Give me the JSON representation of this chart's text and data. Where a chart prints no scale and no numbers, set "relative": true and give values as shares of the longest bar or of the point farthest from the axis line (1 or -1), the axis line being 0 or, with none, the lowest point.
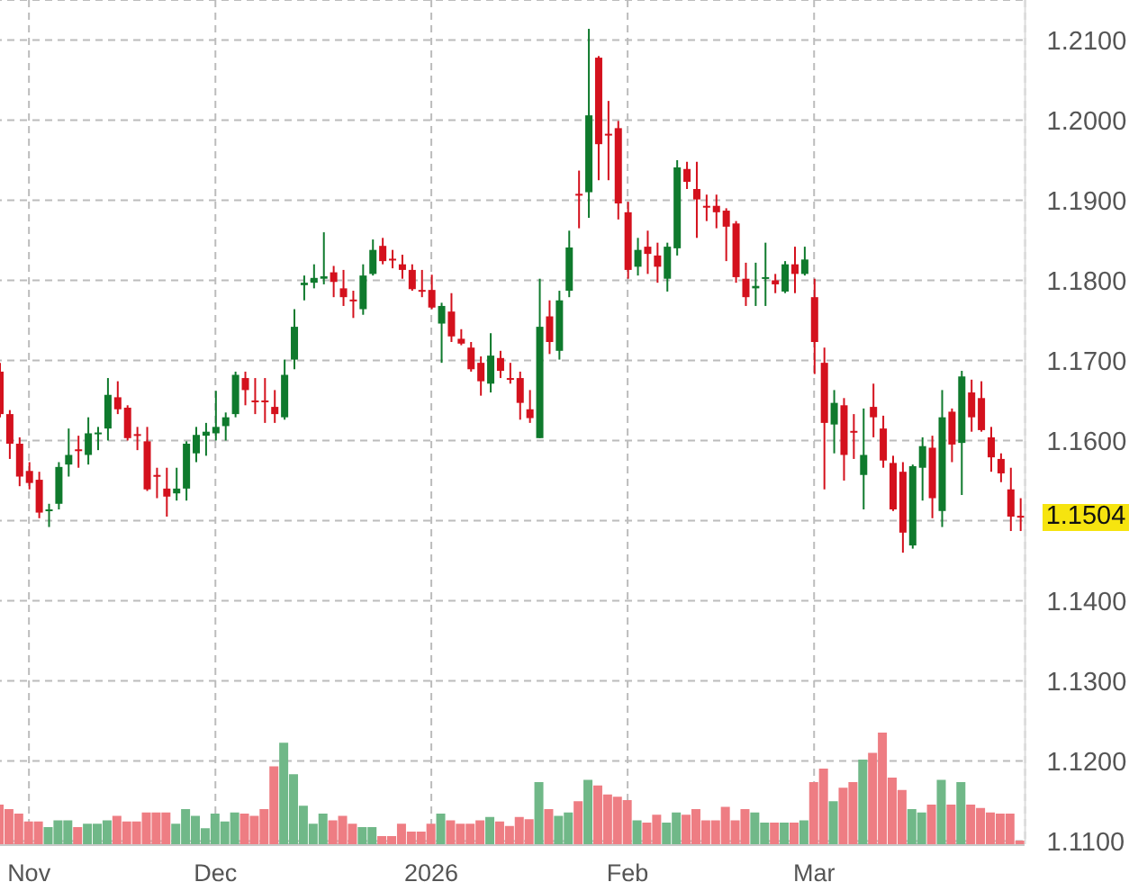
{
  "chart_data": [
    {
      "type": "candlestick",
      "categories": [
        null,
        null,
        null,
        "Nov",
        null,
        null,
        null,
        null,
        null,
        null,
        null,
        null,
        null,
        null,
        null,
        null,
        null,
        null,
        null,
        null,
        null,
        null,
        "Dec",
        null,
        null,
        null,
        null,
        null,
        null,
        null,
        null,
        null,
        null,
        null,
        null,
        null,
        null,
        null,
        null,
        null,
        null,
        null,
        null,
        null,
        "2026",
        null,
        null,
        null,
        null,
        null,
        null,
        null,
        null,
        null,
        null,
        null,
        null,
        null,
        null,
        null,
        null,
        null,
        null,
        null,
        "Feb",
        null,
        null,
        null,
        null,
        null,
        null,
        null,
        null,
        null,
        null,
        null,
        null,
        null,
        null,
        null,
        null,
        null,
        null,
        "Mar",
        null,
        null,
        null,
        null,
        null,
        null,
        null,
        null,
        null,
        null,
        null,
        null,
        null,
        null,
        null,
        null,
        null,
        null,
        null,
        null,
        null
      ],
      "ohlc": [
        [
          1.1686,
          1.1697,
          1.1629,
          1.1633
        ],
        [
          1.1633,
          1.1638,
          1.1577,
          1.1596
        ],
        [
          1.1596,
          1.1604,
          1.1543,
          1.1555
        ],
        [
          1.1562,
          1.1573,
          1.1539,
          1.1547
        ],
        [
          1.1551,
          1.1561,
          1.1503,
          1.151
        ],
        [
          1.1512,
          1.1521,
          1.1492,
          1.1514
        ],
        [
          1.1521,
          1.1573,
          1.1514,
          1.1567
        ],
        [
          1.157,
          1.1615,
          1.1555,
          1.1582
        ],
        [
          1.1589,
          1.1606,
          1.1566,
          1.1587
        ],
        [
          1.1582,
          1.1629,
          1.157,
          1.1609
        ],
        [
          1.1608,
          1.1617,
          1.1588,
          1.161
        ],
        [
          1.1615,
          1.1678,
          1.16,
          1.1657
        ],
        [
          1.1654,
          1.1674,
          1.1633,
          1.1639
        ],
        [
          1.1641,
          1.1644,
          1.16,
          1.1603
        ],
        [
          1.1608,
          1.1617,
          1.1588,
          1.1606
        ],
        [
          1.1599,
          1.1617,
          1.1537,
          1.1539
        ],
        [
          1.1557,
          1.1566,
          1.1528,
          1.1555
        ],
        [
          1.154,
          1.1566,
          1.1505,
          1.153
        ],
        [
          1.1534,
          1.1566,
          1.1525,
          1.154
        ],
        [
          1.154,
          1.1599,
          1.1525,
          1.1596
        ],
        [
          1.1584,
          1.1617,
          1.1573,
          1.1607
        ],
        [
          1.1606,
          1.1622,
          1.1581,
          1.1611
        ],
        [
          1.1609,
          1.1662,
          1.16,
          1.1617
        ],
        [
          1.1618,
          1.1635,
          1.16,
          1.1629
        ],
        [
          1.1633,
          1.1686,
          1.1629,
          1.1682
        ],
        [
          1.1678,
          1.1686,
          1.1644,
          1.1663
        ],
        [
          1.165,
          1.1678,
          1.1633,
          1.1649
        ],
        [
          1.165,
          1.1678,
          1.1622,
          1.1648
        ],
        [
          1.1642,
          1.1663,
          1.1622,
          1.1633
        ],
        [
          1.1629,
          1.1701,
          1.1626,
          1.1682
        ],
        [
          1.1701,
          1.1764,
          1.1689,
          1.1742
        ],
        [
          1.1794,
          1.1806,
          1.1775,
          1.1797
        ],
        [
          1.1797,
          1.182,
          1.179,
          1.1803
        ],
        [
          1.1802,
          1.186,
          1.1795,
          1.1805
        ],
        [
          1.181,
          1.1818,
          1.1779,
          1.1798
        ],
        [
          1.179,
          1.1813,
          1.1768,
          1.1779
        ],
        [
          1.1776,
          1.1787,
          1.1753,
          1.1775
        ],
        [
          1.1764,
          1.182,
          1.1757,
          1.1806
        ],
        [
          1.1808,
          1.1851,
          1.1806,
          1.1838
        ],
        [
          1.1843,
          1.1853,
          1.182,
          1.1824
        ],
        [
          1.1827,
          1.1838,
          1.1815,
          1.1826
        ],
        [
          1.182,
          1.1832,
          1.1802,
          1.1813
        ],
        [
          1.1813,
          1.182,
          1.1787,
          1.1789
        ],
        [
          1.1788,
          1.1813,
          1.1779,
          1.1787
        ],
        [
          1.1788,
          1.1807,
          1.1764,
          1.1766
        ],
        [
          1.1746,
          1.1772,
          1.1697,
          1.1768
        ],
        [
          1.1761,
          1.1784,
          1.1723,
          1.173
        ],
        [
          1.1727,
          1.1739,
          1.1719,
          1.1721
        ],
        [
          1.1716,
          1.1723,
          1.1686,
          1.1689
        ],
        [
          1.1697,
          1.1705,
          1.1656,
          1.1674
        ],
        [
          1.1671,
          1.1734,
          1.166,
          1.1706
        ],
        [
          1.1703,
          1.1712,
          1.1678,
          1.1687
        ],
        [
          1.1678,
          1.1697,
          1.1671,
          1.1677
        ],
        [
          1.1678,
          1.1686,
          1.1626,
          1.1647
        ],
        [
          1.1639,
          1.1663,
          1.1622,
          1.1628
        ],
        [
          1.1603,
          1.1802,
          1.1603,
          1.1742
        ],
        [
          1.1755,
          1.1775,
          1.1708,
          1.1723
        ],
        [
          1.1712,
          1.1787,
          1.1701,
          1.1775
        ],
        [
          1.1787,
          1.1862,
          1.1779,
          1.1841
        ],
        [
          1.1908,
          1.1937,
          1.1865,
          1.1906
        ],
        [
          1.191,
          1.2114,
          1.1878,
          1.2006
        ],
        [
          1.2078,
          1.208,
          1.1925,
          1.197
        ],
        [
          1.1983,
          1.2024,
          1.1925,
          1.1981
        ],
        [
          1.199,
          1.1999,
          1.1876,
          1.1896
        ],
        [
          1.1885,
          1.1898,
          1.1802,
          1.1813
        ],
        [
          1.1817,
          1.1853,
          1.1806,
          1.1838
        ],
        [
          1.1842,
          1.1862,
          1.1808,
          1.1833
        ],
        [
          1.1831,
          1.1847,
          1.1797,
          1.1817
        ],
        [
          1.1802,
          1.1847,
          1.1786,
          1.1842
        ],
        [
          1.184,
          1.195,
          1.1831,
          1.1941
        ],
        [
          1.1939,
          1.1948,
          1.1914,
          1.1923
        ],
        [
          1.1914,
          1.1948,
          1.1853,
          1.1901
        ],
        [
          1.1893,
          1.1907,
          1.1874,
          1.1891
        ],
        [
          1.1893,
          1.1907,
          1.1865,
          1.1885
        ],
        [
          1.1887,
          1.189,
          1.1824,
          1.1867
        ],
        [
          1.1871,
          1.1874,
          1.1797,
          1.1804
        ],
        [
          1.1802,
          1.1822,
          1.1768,
          1.1779
        ],
        [
          1.179,
          1.1822,
          1.1768,
          1.1793
        ],
        [
          1.1802,
          1.1847,
          1.1768,
          1.1804
        ],
        [
          1.18,
          1.1808,
          1.1784,
          1.1795
        ],
        [
          1.1786,
          1.1824,
          1.1784,
          1.182
        ],
        [
          1.182,
          1.1842,
          1.1784,
          1.1808
        ],
        [
          1.1808,
          1.1842,
          1.1806,
          1.1826
        ],
        [
          1.1779,
          1.1802,
          1.1683,
          1.1723
        ],
        [
          1.1697,
          1.1716,
          1.1539,
          1.1622
        ],
        [
          1.162,
          1.1663,
          1.1584,
          1.1647
        ],
        [
          1.1644,
          1.1653,
          1.155,
          1.1582
        ],
        [
          1.1612,
          1.1633,
          1.1577,
          1.161
        ],
        [
          1.1557,
          1.164,
          1.1514,
          1.1582
        ],
        [
          1.1642,
          1.1671,
          1.1604,
          1.1629
        ],
        [
          1.1615,
          1.1631,
          1.1566,
          1.1575
        ],
        [
          1.1572,
          1.1581,
          1.1512,
          1.1514
        ],
        [
          1.1561,
          1.1573,
          1.146,
          1.1485
        ],
        [
          1.1469,
          1.157,
          1.1465,
          1.1568
        ],
        [
          1.1566,
          1.1604,
          1.1525,
          1.1593
        ],
        [
          1.1591,
          1.1606,
          1.1503,
          1.1528
        ],
        [
          1.1512,
          1.1663,
          1.1492,
          1.1629
        ],
        [
          1.1636,
          1.164,
          1.1573,
          1.1595
        ],
        [
          1.1597,
          1.1687,
          1.1532,
          1.168
        ],
        [
          1.166,
          1.1676,
          1.1611,
          1.1629
        ],
        [
          1.1653,
          1.1674,
          1.1611,
          1.1613
        ],
        [
          1.1604,
          1.1617,
          1.1561,
          1.1579
        ],
        [
          1.1577,
          1.1584,
          1.1548,
          1.1559
        ],
        [
          1.1539,
          1.1566,
          1.1487,
          1.1505
        ],
        [
          1.1506,
          1.1528,
          1.1487,
          1.1504
        ]
      ],
      "colors": [
        "#d4111d",
        "#d4111d",
        "#d4111d",
        "#d4111d",
        "#d4111d",
        "#0f7a2d",
        "#0f7a2d",
        "#0f7a2d",
        "#d4111d",
        "#0f7a2d",
        "#0f7a2d",
        "#0f7a2d",
        "#d4111d",
        "#d4111d",
        "#d4111d",
        "#d4111d",
        "#d4111d",
        "#d4111d",
        "#0f7a2d",
        "#0f7a2d",
        "#0f7a2d",
        "#0f7a2d",
        "#0f7a2d",
        "#0f7a2d",
        "#0f7a2d",
        "#d4111d",
        "#d4111d",
        "#d4111d",
        "#d4111d",
        "#0f7a2d",
        "#0f7a2d",
        "#0f7a2d",
        "#0f7a2d",
        "#0f7a2d",
        "#d4111d",
        "#d4111d",
        "#d4111d",
        "#0f7a2d",
        "#0f7a2d",
        "#d4111d",
        "#d4111d",
        "#d4111d",
        "#d4111d",
        "#d4111d",
        "#d4111d",
        "#0f7a2d",
        "#d4111d",
        "#d4111d",
        "#d4111d",
        "#d4111d",
        "#0f7a2d",
        "#d4111d",
        "#d4111d",
        "#d4111d",
        "#d4111d",
        "#0f7a2d",
        "#d4111d",
        "#0f7a2d",
        "#0f7a2d",
        "#d4111d",
        "#0f7a2d",
        "#d4111d",
        "#d4111d",
        "#d4111d",
        "#d4111d",
        "#0f7a2d",
        "#d4111d",
        "#d4111d",
        "#0f7a2d",
        "#0f7a2d",
        "#d4111d",
        "#d4111d",
        "#d4111d",
        "#d4111d",
        "#d4111d",
        "#d4111d",
        "#d4111d",
        "#0f7a2d",
        "#0f7a2d",
        "#d4111d",
        "#0f7a2d",
        "#d4111d",
        "#0f7a2d",
        "#d4111d",
        "#d4111d",
        "#0f7a2d",
        "#d4111d",
        "#d4111d",
        "#0f7a2d",
        "#d4111d",
        "#d4111d",
        "#d4111d",
        "#d4111d",
        "#0f7a2d",
        "#0f7a2d",
        "#d4111d",
        "#0f7a2d",
        "#d4111d",
        "#0f7a2d",
        "#d4111d",
        "#d4111d",
        "#d4111d",
        "#d4111d",
        "#d4111d",
        "#d4111d"
      ],
      "ylim": [
        1.1096,
        1.215
      ],
      "yticks": [
        {
          "value": 1.11,
          "label": "1.1100"
        },
        {
          "value": 1.12,
          "label": "1.1200"
        },
        {
          "value": 1.13,
          "label": "1.1300"
        },
        {
          "value": 1.14,
          "label": "1.1400"
        },
        {
          "value": 1.15,
          "label": null
        },
        {
          "value": 1.16,
          "label": "1.1600"
        },
        {
          "value": 1.17,
          "label": "1.1700"
        },
        {
          "value": 1.18,
          "label": "1.1800"
        },
        {
          "value": 1.19,
          "label": "1.1900"
        },
        {
          "value": 1.2,
          "label": "1.2000"
        },
        {
          "value": 1.21,
          "label": "1.2100"
        }
      ],
      "grid": true,
      "annotations": [
        "1.1504"
      ]
    },
    {
      "type": "bar",
      "categories": [
        null,
        null,
        null,
        null,
        null,
        null,
        null,
        null,
        null,
        null,
        null,
        null,
        null,
        null,
        null,
        null,
        null,
        null,
        null,
        null,
        null,
        null,
        null,
        null,
        null,
        null,
        null,
        null,
        null,
        null,
        null,
        null,
        null,
        null,
        null,
        null,
        null,
        null,
        null,
        null,
        null,
        null,
        null,
        null,
        null,
        null,
        null,
        null,
        null,
        null,
        null,
        null,
        null,
        null,
        null,
        null,
        null,
        null,
        null,
        null,
        null,
        null,
        null,
        null,
        null,
        null,
        null,
        null,
        null,
        null,
        null,
        null,
        null,
        null,
        null,
        null,
        null,
        null,
        null,
        null,
        null,
        null,
        null,
        null,
        null,
        null,
        null,
        null,
        null,
        null,
        null,
        null,
        null,
        null,
        null,
        null,
        null,
        null,
        null,
        null,
        null,
        null,
        null,
        null,
        null
      ],
      "values": [
        0.36,
        0.32,
        0.28,
        0.21,
        0.21,
        0.16,
        0.22,
        0.22,
        0.16,
        0.19,
        0.19,
        0.22,
        0.26,
        0.21,
        0.21,
        0.29,
        0.29,
        0.29,
        0.19,
        0.32,
        0.26,
        0.15,
        0.28,
        0.21,
        0.29,
        0.28,
        0.26,
        0.32,
        0.7,
        0.91,
        0.63,
        0.35,
        0.19,
        0.28,
        0.22,
        0.26,
        0.19,
        0.16,
        0.16,
        0.08,
        0.08,
        0.19,
        0.12,
        0.12,
        0.19,
        0.28,
        0.22,
        0.19,
        0.19,
        0.22,
        0.25,
        0.21,
        0.17,
        0.25,
        0.23,
        0.56,
        0.32,
        0.26,
        0.29,
        0.39,
        0.58,
        0.53,
        0.45,
        0.43,
        0.4,
        0.22,
        0.2,
        0.27,
        0.2,
        0.29,
        0.27,
        0.32,
        0.22,
        0.22,
        0.34,
        0.22,
        0.32,
        0.29,
        0.2,
        0.2,
        0.2,
        0.2,
        0.22,
        0.56,
        0.68,
        0.39,
        0.51,
        0.56,
        0.76,
        0.82,
        1,
        0.6,
        0.49,
        0.32,
        0.29,
        0.36,
        0.58,
        0.36,
        0.56,
        0.36,
        0.33,
        0.29,
        0.28,
        0.28,
        0.04
      ],
      "colors": [
        "#ee7d83",
        "#ee7d83",
        "#ee7d83",
        "#ee7d83",
        "#ee7d83",
        "#70b888",
        "#70b888",
        "#70b888",
        "#ee7d83",
        "#70b888",
        "#70b888",
        "#70b888",
        "#ee7d83",
        "#ee7d83",
        "#ee7d83",
        "#ee7d83",
        "#ee7d83",
        "#ee7d83",
        "#70b888",
        "#70b888",
        "#70b888",
        "#70b888",
        "#70b888",
        "#70b888",
        "#70b888",
        "#ee7d83",
        "#ee7d83",
        "#ee7d83",
        "#ee7d83",
        "#70b888",
        "#70b888",
        "#70b888",
        "#70b888",
        "#70b888",
        "#ee7d83",
        "#ee7d83",
        "#ee7d83",
        "#70b888",
        "#70b888",
        "#ee7d83",
        "#ee7d83",
        "#ee7d83",
        "#ee7d83",
        "#ee7d83",
        "#ee7d83",
        "#70b888",
        "#ee7d83",
        "#ee7d83",
        "#ee7d83",
        "#ee7d83",
        "#70b888",
        "#ee7d83",
        "#ee7d83",
        "#ee7d83",
        "#ee7d83",
        "#70b888",
        "#ee7d83",
        "#70b888",
        "#70b888",
        "#ee7d83",
        "#70b888",
        "#ee7d83",
        "#ee7d83",
        "#ee7d83",
        "#ee7d83",
        "#70b888",
        "#ee7d83",
        "#ee7d83",
        "#70b888",
        "#70b888",
        "#ee7d83",
        "#ee7d83",
        "#ee7d83",
        "#ee7d83",
        "#ee7d83",
        "#ee7d83",
        "#ee7d83",
        "#70b888",
        "#70b888",
        "#ee7d83",
        "#70b888",
        "#ee7d83",
        "#70b888",
        "#ee7d83",
        "#ee7d83",
        "#70b888",
        "#ee7d83",
        "#ee7d83",
        "#70b888",
        "#ee7d83",
        "#ee7d83",
        "#ee7d83",
        "#ee7d83",
        "#70b888",
        "#70b888",
        "#ee7d83",
        "#70b888",
        "#ee7d83",
        "#70b888",
        "#ee7d83",
        "#ee7d83",
        "#ee7d83",
        "#ee7d83",
        "#ee7d83",
        "#ee7d83"
      ],
      "relative": true
    }
  ]
}
